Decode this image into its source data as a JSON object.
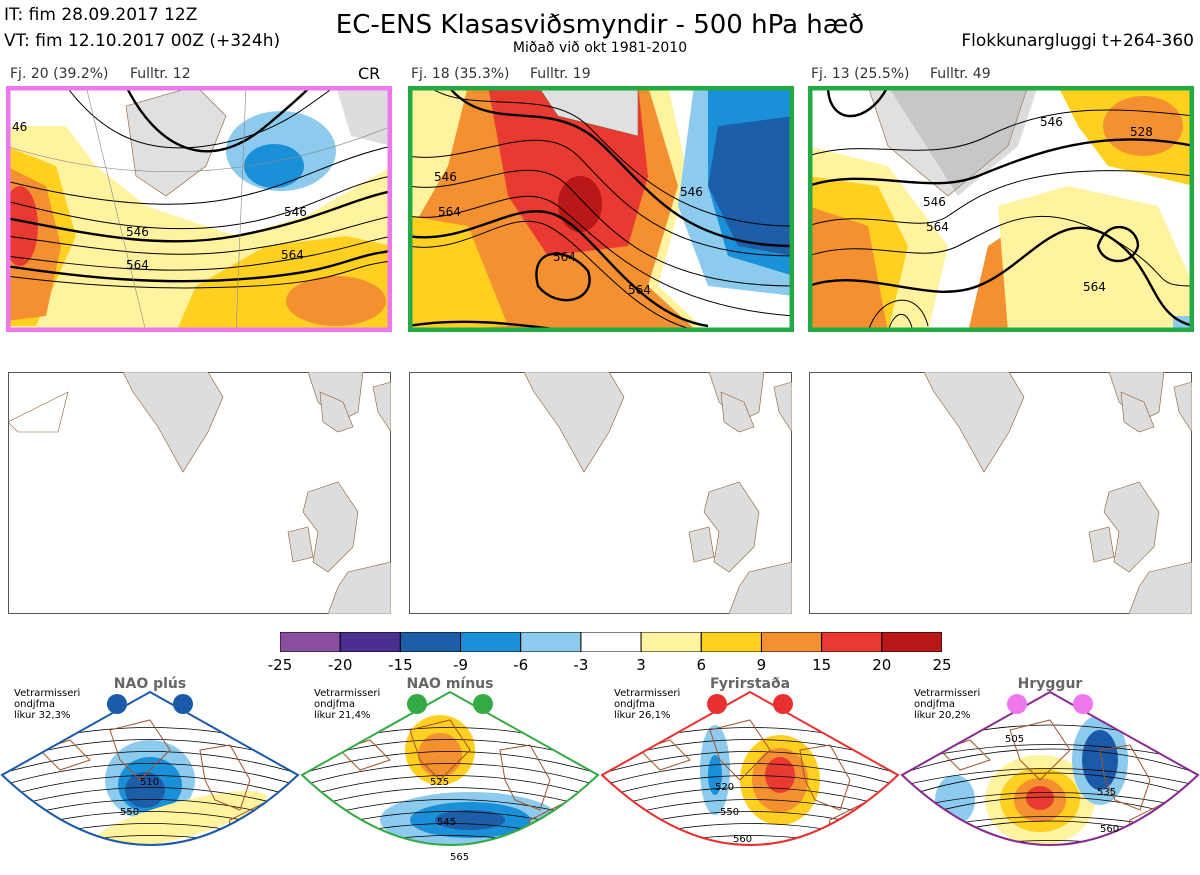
{
  "header": {
    "it": "IT: fim 28.09.2017 12Z",
    "vt": "VT: fim 12.10.2017 00Z  (+324h)",
    "title": "EC-ENS Klasasviðsmyndir - 500 hPa hæð",
    "subtitle": "Miðað við okt 1981-2010",
    "window": "Flokkunargluggi t+264-360"
  },
  "clusters": [
    {
      "label": "Fj. 20 (39.2%)",
      "rep": "Fulltr. 12",
      "tag": "CR",
      "border": "#ee77ee",
      "contours": [
        "46",
        "564",
        "546",
        "564",
        "546"
      ]
    },
    {
      "label": "Fj. 18 (35.3%)",
      "rep": "Fulltr. 19",
      "tag": "",
      "border": "#22aa44",
      "contours": [
        "564",
        "546",
        "564",
        "564",
        "546"
      ]
    },
    {
      "label": "Fj. 13 (25.5%)",
      "rep": "Fulltr. 49",
      "tag": "",
      "border": "#22aa44",
      "contours": [
        "546",
        "564",
        "546",
        "564",
        "528"
      ]
    }
  ],
  "colorbar": {
    "ticks": [
      "-25",
      "-20",
      "-15",
      "-9",
      "-6",
      "-3",
      "3",
      "6",
      "9",
      "15",
      "20",
      "25"
    ],
    "colors": [
      "#8b4ea0",
      "#4a2e90",
      "#1c5ea8",
      "#1a90d8",
      "#8ccbee",
      "#ffffff",
      "#fff3a0",
      "#ffd020",
      "#f59030",
      "#e83a30",
      "#b81818"
    ]
  },
  "regimes": [
    {
      "name": "NAO plús",
      "note": "Vetrarmisseri\nondjfma\nlíkur 32,3%",
      "border": "#1a5aa8",
      "dot": "#1a5aa8",
      "iso": [
        "510",
        "550"
      ]
    },
    {
      "name": "NAO mínus",
      "note": "Vetrarmisseri\nondjfma\nlíkur 21,4%",
      "border": "#33aa44",
      "dot": "#33aa44",
      "iso": [
        "525",
        "545",
        "565"
      ]
    },
    {
      "name": "Fyrirstaða",
      "note": "Vetrarmisseri\nondjfma\nlíkur 26,1%",
      "border": "#e83030",
      "dot": "#e83030",
      "iso": [
        "520",
        "550",
        "560"
      ]
    },
    {
      "name": "Hryggur",
      "note": "Vetrarmisseri\nondjfma\nlíkur 20,2%",
      "border": "#8a2a90",
      "dot": "#ee77ee",
      "iso": [
        "505",
        "535",
        "560"
      ]
    }
  ]
}
